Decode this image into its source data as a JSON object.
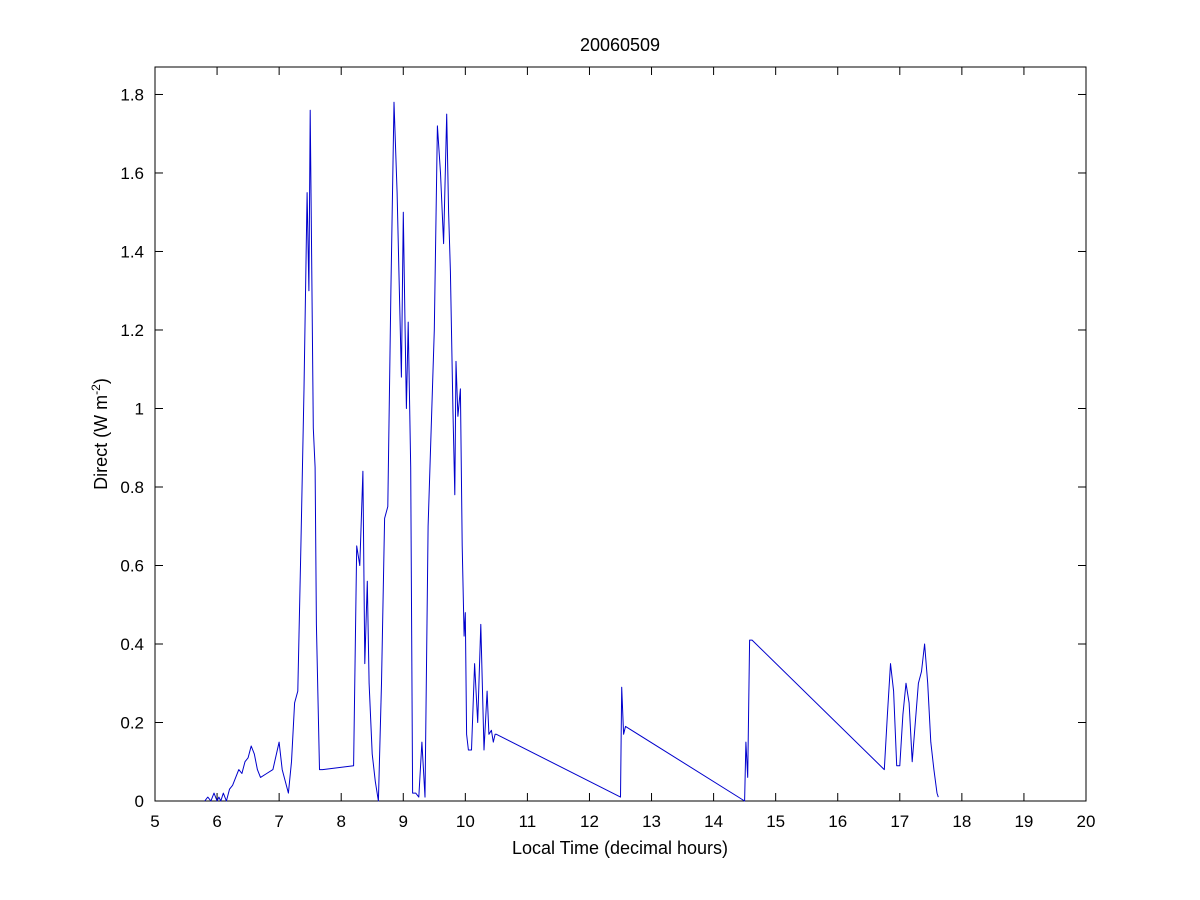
{
  "chart_data": {
    "type": "line",
    "title": "20060509",
    "xlabel": "Local Time (decimal hours)",
    "ylabel_main": "Direct (W m",
    "ylabel_sup": "-2",
    "ylabel_close": ")",
    "xlim": [
      5,
      20
    ],
    "ylim": [
      0,
      1.87
    ],
    "xticks": [
      5,
      6,
      7,
      8,
      9,
      10,
      11,
      12,
      13,
      14,
      15,
      16,
      17,
      18,
      19,
      20
    ],
    "yticks": [
      0,
      0.2,
      0.4,
      0.6,
      0.8,
      1,
      1.2,
      1.4,
      1.6,
      1.8
    ],
    "ytick_labels": [
      "0",
      "0.2",
      "0.4",
      "0.6",
      "0.8",
      "1",
      "1.2",
      "1.4",
      "1.6",
      "1.8"
    ],
    "grid": false,
    "line_color": "#0000cc",
    "series": [
      {
        "x": [
          5.8,
          5.85,
          5.9,
          5.95,
          6.0,
          6.03,
          6.06,
          6.1,
          6.15,
          6.2,
          6.25,
          6.3,
          6.35,
          6.4,
          6.45,
          6.5,
          6.55,
          6.6,
          6.65,
          6.7,
          6.8,
          6.9,
          7.0,
          7.05,
          7.1,
          7.15,
          7.2,
          7.25,
          7.3,
          7.35,
          7.4,
          7.45,
          7.48,
          7.5,
          7.52,
          7.55,
          7.58,
          7.6,
          7.65,
          7.7,
          8.2,
          8.25,
          8.3,
          8.35,
          8.38,
          8.42,
          8.45,
          8.5,
          8.55,
          8.6,
          8.65,
          8.7,
          8.75,
          8.8,
          8.85,
          8.9,
          8.93,
          8.97,
          9.0,
          9.03,
          9.05,
          9.08,
          9.12,
          9.15,
          9.2,
          9.25,
          9.3,
          9.35,
          9.4,
          9.45,
          9.5,
          9.55,
          9.6,
          9.65,
          9.7,
          9.73,
          9.76,
          9.8,
          9.83,
          9.85,
          9.88,
          9.92,
          9.95,
          9.98,
          10.0,
          10.02,
          10.05,
          10.1,
          10.15,
          10.2,
          10.25,
          10.3,
          10.35,
          10.38,
          10.42,
          10.45,
          10.48,
          10.5,
          12.5,
          12.52,
          12.55,
          12.58,
          14.5,
          14.52,
          14.55,
          14.58,
          14.62,
          16.75,
          16.8,
          16.85,
          16.9,
          16.95,
          17.0,
          17.05,
          17.1,
          17.15,
          17.2,
          17.25,
          17.3,
          17.35,
          17.4,
          17.45,
          17.5,
          17.55,
          17.6,
          17.62
        ],
        "y": [
          0.0,
          0.01,
          0.0,
          0.02,
          0.0,
          0.01,
          0.0,
          0.02,
          0.0,
          0.03,
          0.04,
          0.06,
          0.08,
          0.07,
          0.1,
          0.11,
          0.14,
          0.12,
          0.08,
          0.06,
          0.07,
          0.08,
          0.15,
          0.08,
          0.05,
          0.02,
          0.1,
          0.25,
          0.28,
          0.65,
          1.05,
          1.55,
          1.3,
          1.76,
          1.45,
          0.95,
          0.85,
          0.45,
          0.08,
          0.08,
          0.09,
          0.65,
          0.6,
          0.84,
          0.35,
          0.56,
          0.3,
          0.12,
          0.05,
          0.0,
          0.3,
          0.72,
          0.75,
          1.3,
          1.78,
          1.55,
          1.35,
          1.08,
          1.5,
          1.2,
          1.0,
          1.22,
          0.85,
          0.02,
          0.02,
          0.01,
          0.15,
          0.01,
          0.7,
          0.95,
          1.2,
          1.72,
          1.6,
          1.42,
          1.75,
          1.5,
          1.35,
          1.0,
          0.78,
          1.12,
          0.98,
          1.05,
          0.65,
          0.42,
          0.48,
          0.17,
          0.13,
          0.13,
          0.35,
          0.2,
          0.45,
          0.13,
          0.28,
          0.17,
          0.18,
          0.15,
          0.17,
          0.17,
          0.01,
          0.29,
          0.17,
          0.19,
          0.0,
          0.15,
          0.06,
          0.41,
          0.41,
          0.08,
          0.22,
          0.35,
          0.28,
          0.09,
          0.09,
          0.22,
          0.3,
          0.25,
          0.1,
          0.2,
          0.3,
          0.33,
          0.4,
          0.3,
          0.15,
          0.08,
          0.02,
          0.01
        ]
      }
    ]
  }
}
